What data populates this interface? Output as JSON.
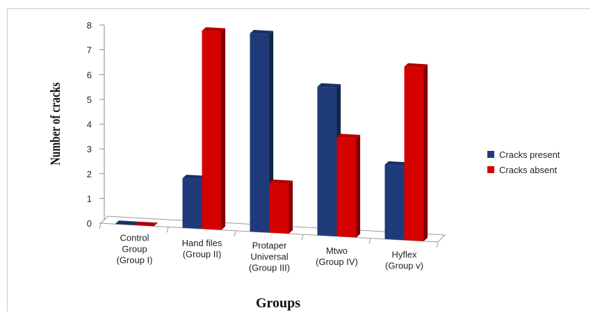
{
  "chart_data": {
    "type": "bar",
    "title": "",
    "xlabel": "Groups",
    "ylabel": "Number of cracks",
    "ylim": [
      0,
      8
    ],
    "yticks": [
      "0",
      "1",
      "2",
      "3",
      "4",
      "5",
      "6",
      "7",
      "8"
    ],
    "categories": [
      [
        "Control",
        "Group",
        "(Group I)"
      ],
      [
        "Hand files",
        "(Group II)"
      ],
      [
        "Protaper",
        "Universal",
        "(Group III)"
      ],
      [
        "Mtwo",
        "(Group IV)"
      ],
      [
        "Hyflex",
        "(Group v)"
      ]
    ],
    "series": [
      {
        "name": "Cracks present",
        "color": "#1f3a78",
        "values": [
          0,
          2,
          8,
          6,
          3
        ]
      },
      {
        "name": "Cracks absent",
        "color": "#d50000",
        "values": [
          0,
          8,
          2,
          4,
          7
        ]
      }
    ],
    "legend": "right",
    "style": "3d-clustered-column"
  }
}
